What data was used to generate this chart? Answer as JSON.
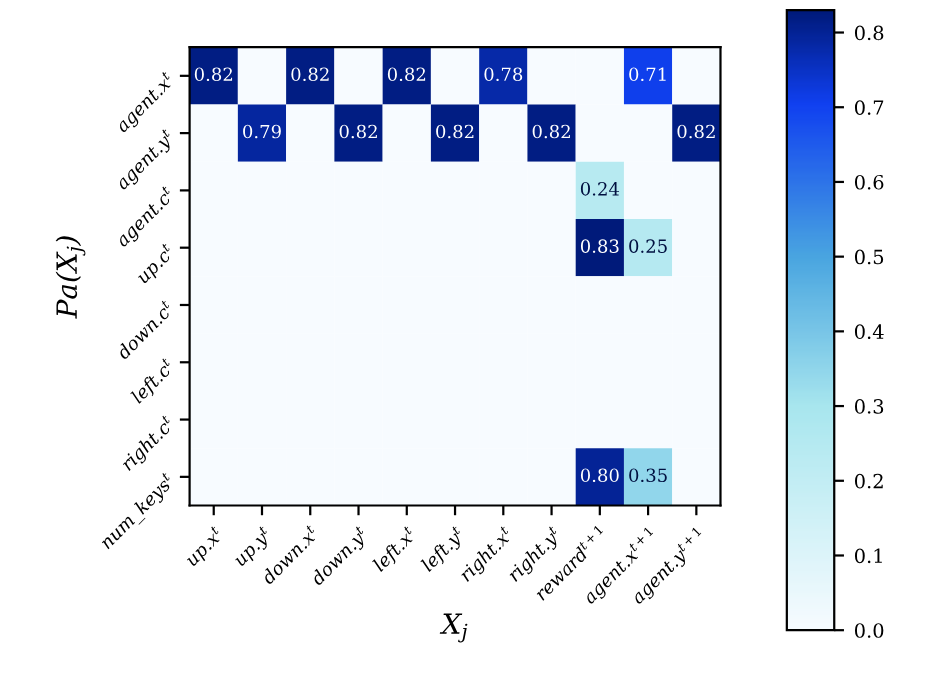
{
  "chart_data": {
    "type": "heatmap",
    "xlabel": "X$_{j}$",
    "ylabel": "Pa(X$_{j}$)",
    "categories": [
      "up.x$^{t}$",
      "up.y$^{t}$",
      "down.x$^{t}$",
      "down.y$^{t}$",
      "left.x$^{t}$",
      "left.y$^{t}$",
      "right.x$^{t}$",
      "right.y$^{t}$",
      "reward$^{t+1}$",
      "agent.x$^{t+1}$",
      "agent.y$^{t+1}$"
    ],
    "y_categories": [
      "agent.x$^{t}$",
      "agent.y$^{t}$",
      "agent.c$^{t}$",
      "up.c$^{t}$",
      "down.c$^{t}$",
      "left.c$^{t}$",
      "right.c$^{t}$",
      "num_keys$^{t}$"
    ],
    "cells": [
      [
        0.82,
        0,
        0.82,
        0,
        0.82,
        0,
        0.78,
        0,
        0,
        0.71,
        0
      ],
      [
        0,
        0.79,
        0,
        0.82,
        0,
        0.82,
        0,
        0.82,
        0,
        0,
        0.82
      ],
      [
        0,
        0,
        0,
        0,
        0,
        0,
        0,
        0,
        0.24,
        0,
        0
      ],
      [
        0,
        0,
        0,
        0,
        0,
        0,
        0,
        0,
        0.83,
        0.25,
        0
      ],
      [
        0,
        0,
        0,
        0,
        0,
        0,
        0,
        0,
        0,
        0,
        0
      ],
      [
        0,
        0,
        0,
        0,
        0,
        0,
        0,
        0,
        0,
        0,
        0
      ],
      [
        0,
        0,
        0,
        0,
        0,
        0,
        0,
        0,
        0,
        0,
        0
      ],
      [
        0,
        0,
        0,
        0,
        0,
        0,
        0,
        0,
        0.8,
        0.35,
        0
      ]
    ],
    "cell_labels": [
      [
        "0.82",
        null,
        "0.82",
        null,
        "0.82",
        null,
        "0.78",
        null,
        null,
        "0.71",
        null
      ],
      [
        null,
        "0.79",
        null,
        "0.82",
        null,
        "0.82",
        null,
        "0.82",
        null,
        null,
        "0.82"
      ],
      [
        null,
        null,
        null,
        null,
        null,
        null,
        null,
        null,
        "0.24",
        null,
        null
      ],
      [
        null,
        null,
        null,
        null,
        null,
        null,
        null,
        null,
        "0.83",
        "0.25",
        null
      ],
      [
        null,
        null,
        null,
        null,
        null,
        null,
        null,
        null,
        null,
        null,
        null
      ],
      [
        null,
        null,
        null,
        null,
        null,
        null,
        null,
        null,
        null,
        null,
        null
      ],
      [
        null,
        null,
        null,
        null,
        null,
        null,
        null,
        null,
        null,
        null,
        null
      ],
      [
        null,
        null,
        null,
        null,
        null,
        null,
        null,
        null,
        "0.80",
        "0.35",
        null
      ]
    ],
    "clim": [
      0,
      0.83
    ],
    "cticks": [
      {
        "value": 0,
        "label": "0.0"
      },
      0.1,
      0.2,
      0.3,
      0.4,
      0.5,
      0.6,
      0.7,
      0.8
    ]
  }
}
